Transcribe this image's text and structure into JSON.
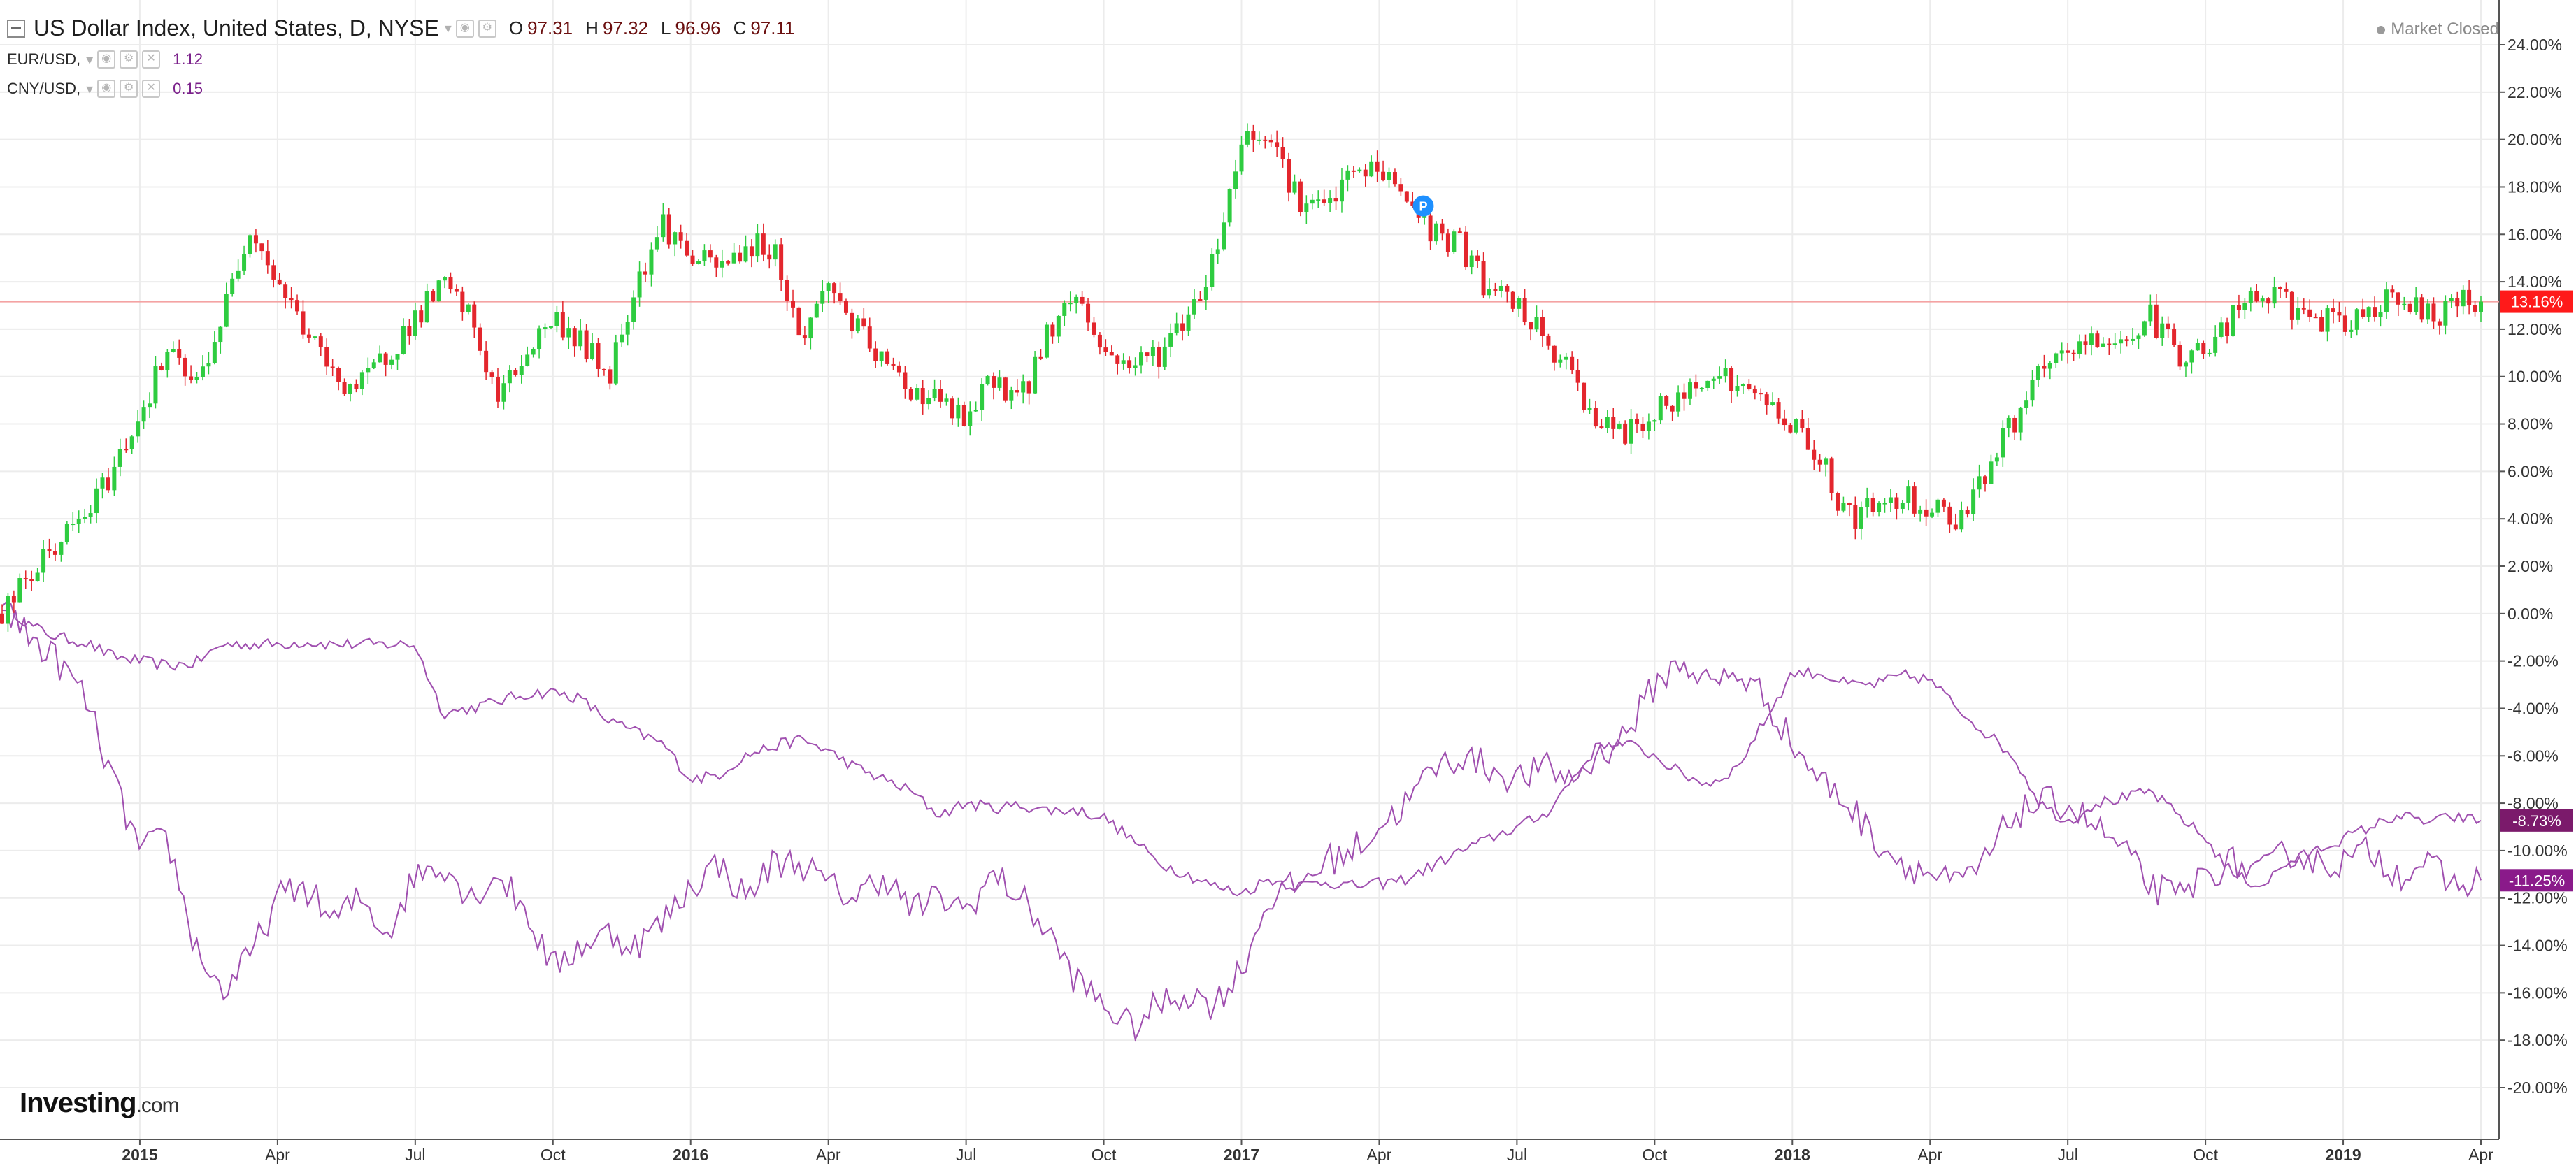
{
  "header": {
    "title": "US Dollar Index, United States, D, NYSE",
    "ohlc": [
      {
        "label": "O",
        "value": "97.31"
      },
      {
        "label": "H",
        "value": "97.32"
      },
      {
        "label": "L",
        "value": "96.96"
      },
      {
        "label": "C",
        "value": "97.11"
      }
    ],
    "market_status": "Market Closed"
  },
  "comparisons": [
    {
      "symbol": "EUR/USD,",
      "value": "1.12"
    },
    {
      "symbol": "CNY/USD,",
      "value": "0.15"
    }
  ],
  "logo": {
    "brand": "Investing",
    "domain": ".com"
  },
  "colors": {
    "up": "#26a69a",
    "up_candle": "#2ecc40",
    "down_candle": "#e3262d",
    "compare_line": "#a050b0",
    "grid": "#ececec",
    "price_line": "#f4a3a3",
    "label_main": "#ff1a1a",
    "label_compare_1": "#7b1a6b",
    "label_compare_2": "#8a1a8a",
    "marker": "#1e90ff"
  },
  "chart_data": {
    "type": "line",
    "title": "US Dollar Index, United States, D, NYSE",
    "yaxis": {
      "min": -20,
      "max": 24,
      "step": 2,
      "tick_labels": [
        "24.00%",
        "22.00%",
        "20.00%",
        "18.00%",
        "16.00%",
        "14.00%",
        "12.00%",
        "10.00%",
        "8.00%",
        "6.00%",
        "4.00%",
        "2.00%",
        "0.00%",
        "-2.00%",
        "-4.00%",
        "-6.00%",
        "-8.00%",
        "-10.00%",
        "-12.00%",
        "-14.00%",
        "-16.00%",
        "-18.00%",
        "-20.00%"
      ]
    },
    "xaxis": {
      "tick_labels": [
        "2015",
        "Apr",
        "Jul",
        "Oct",
        "2016",
        "Apr",
        "Jul",
        "Oct",
        "2017",
        "Apr",
        "Jul",
        "Oct",
        "2018",
        "Apr",
        "Jul",
        "Oct",
        "2019",
        "Apr"
      ],
      "tick_positions": [
        0.25,
        0.5,
        0.75,
        1.0,
        1.25,
        1.5,
        1.75,
        2.0,
        2.25,
        2.5,
        2.75,
        3.0,
        3.25,
        3.5,
        3.75,
        4.0,
        4.25,
        4.5
      ]
    },
    "current_price_line": 13.16,
    "last_value_labels": [
      {
        "series": "US Dollar Index",
        "text": "13.16%",
        "value": 13.16
      },
      {
        "series": "EUR/USD",
        "text": "-8.73%",
        "value": -8.73
      },
      {
        "series": "CNY/USD",
        "text": "-11.25%",
        "value": -11.25
      }
    ],
    "marker": {
      "text": "P",
      "t": 2.58,
      "y": 17.2
    },
    "series": [
      {
        "name": "US Dollar Index",
        "style": "candlestick",
        "x": [
          0.0,
          0.05,
          0.1,
          0.15,
          0.2,
          0.25,
          0.3,
          0.35,
          0.4,
          0.45,
          0.5,
          0.55,
          0.6,
          0.65,
          0.7,
          0.75,
          0.8,
          0.85,
          0.9,
          0.95,
          1.0,
          1.05,
          1.1,
          1.15,
          1.2,
          1.25,
          1.3,
          1.35,
          1.4,
          1.45,
          1.5,
          1.55,
          1.6,
          1.65,
          1.7,
          1.75,
          1.8,
          1.85,
          1.9,
          1.95,
          2.0,
          2.05,
          2.1,
          2.15,
          2.2,
          2.25,
          2.3,
          2.35,
          2.4,
          2.45,
          2.5,
          2.55,
          2.6,
          2.65,
          2.7,
          2.75,
          2.8,
          2.85,
          2.9,
          2.95,
          3.0,
          3.05,
          3.1,
          3.15,
          3.2,
          3.25,
          3.3,
          3.35,
          3.4,
          3.45,
          3.5,
          3.55,
          3.6,
          3.65,
          3.7,
          3.75,
          3.8,
          3.85,
          3.9,
          3.95,
          4.0,
          4.05,
          4.1,
          4.15,
          4.2,
          4.25,
          4.3,
          4.35,
          4.4,
          4.45,
          4.5
        ],
        "values": [
          0.0,
          1.5,
          3.0,
          4.0,
          6.0,
          8.5,
          11.0,
          9.5,
          12.5,
          16.5,
          14.0,
          12.0,
          10.0,
          9.5,
          11.0,
          12.5,
          13.8,
          12.5,
          9.0,
          11.0,
          12.5,
          11.5,
          10.0,
          14.0,
          16.5,
          15.0,
          14.5,
          15.5,
          15.5,
          11.5,
          14.0,
          12.0,
          10.5,
          9.5,
          9.0,
          8.0,
          10.0,
          9.0,
          12.0,
          13.5,
          11.0,
          10.5,
          11.0,
          12.5,
          15.0,
          20.0,
          20.5,
          17.5,
          17.0,
          18.5,
          18.8,
          17.5,
          16.0,
          15.5,
          13.5,
          13.0,
          11.5,
          10.0,
          8.0,
          7.5,
          8.5,
          9.0,
          10.5,
          9.5,
          9.0,
          8.0,
          6.5,
          4.0,
          4.5,
          5.0,
          4.5,
          4.0,
          6.0,
          8.0,
          10.0,
          11.0,
          11.5,
          11.5,
          12.5,
          11.0,
          11.0,
          12.5,
          13.5,
          13.0,
          12.5,
          12.0,
          13.0,
          13.5,
          12.5,
          13.0,
          13.16
        ]
      },
      {
        "name": "EUR/USD",
        "style": "line",
        "x": [
          0.0,
          0.05,
          0.1,
          0.15,
          0.2,
          0.25,
          0.3,
          0.35,
          0.4,
          0.45,
          0.5,
          0.55,
          0.6,
          0.65,
          0.7,
          0.75,
          0.8,
          0.85,
          0.9,
          0.95,
          1.0,
          1.05,
          1.1,
          1.15,
          1.2,
          1.25,
          1.3,
          1.35,
          1.4,
          1.45,
          1.5,
          1.55,
          1.6,
          1.65,
          1.7,
          1.75,
          1.8,
          1.85,
          1.9,
          1.95,
          2.0,
          2.05,
          2.1,
          2.15,
          2.2,
          2.25,
          2.3,
          2.35,
          2.4,
          2.45,
          2.5,
          2.55,
          2.6,
          2.65,
          2.7,
          2.75,
          2.8,
          2.85,
          2.9,
          2.95,
          3.0,
          3.05,
          3.1,
          3.15,
          3.2,
          3.25,
          3.3,
          3.35,
          3.4,
          3.45,
          3.5,
          3.55,
          3.6,
          3.65,
          3.7,
          3.75,
          3.8,
          3.85,
          3.9,
          3.95,
          4.0,
          4.05,
          4.1,
          4.15,
          4.2,
          4.25,
          4.3,
          4.35,
          4.4,
          4.45,
          4.5
        ],
        "values": [
          0.5,
          -0.5,
          -1.0,
          -1.2,
          -1.8,
          -2.0,
          -2.2,
          -2.1,
          -1.3,
          -1.3,
          -1.3,
          -1.2,
          -1.3,
          -1.3,
          -1.3,
          -1.3,
          -4.2,
          -4.0,
          -3.7,
          -3.4,
          -3.3,
          -3.6,
          -4.5,
          -5.0,
          -5.5,
          -7.0,
          -6.8,
          -6.0,
          -5.6,
          -5.3,
          -5.8,
          -6.5,
          -7.0,
          -7.5,
          -8.5,
          -8.0,
          -8.2,
          -8.1,
          -8.3,
          -8.3,
          -8.6,
          -9.5,
          -10.5,
          -11.0,
          -11.5,
          -11.8,
          -11.2,
          -11.5,
          -11.3,
          -11.5,
          -11.4,
          -11.2,
          -10.6,
          -10.0,
          -9.5,
          -9.0,
          -8.5,
          -7.0,
          -5.5,
          -5.5,
          -6.0,
          -6.8,
          -7.2,
          -6.5,
          -4.5,
          -2.5,
          -2.5,
          -3.0,
          -3.0,
          -2.6,
          -2.8,
          -4.0,
          -5.0,
          -6.0,
          -8.0,
          -8.8,
          -8.0,
          -7.8,
          -7.5,
          -8.5,
          -9.5,
          -11.0,
          -11.5,
          -10.5,
          -10.0,
          -9.5,
          -9.0,
          -8.5,
          -8.8,
          -8.6,
          -8.73
        ]
      },
      {
        "name": "CNY/USD",
        "style": "line",
        "x": [
          0.0,
          0.05,
          0.1,
          0.15,
          0.2,
          0.25,
          0.3,
          0.35,
          0.4,
          0.45,
          0.5,
          0.55,
          0.6,
          0.65,
          0.7,
          0.75,
          0.8,
          0.85,
          0.9,
          0.95,
          1.0,
          1.05,
          1.1,
          1.15,
          1.2,
          1.25,
          1.3,
          1.35,
          1.4,
          1.45,
          1.5,
          1.55,
          1.6,
          1.65,
          1.7,
          1.75,
          1.8,
          1.85,
          1.9,
          1.95,
          2.0,
          2.05,
          2.1,
          2.15,
          2.2,
          2.25,
          2.3,
          2.35,
          2.4,
          2.45,
          2.5,
          2.55,
          2.6,
          2.65,
          2.7,
          2.75,
          2.8,
          2.85,
          2.9,
          2.95,
          3.0,
          3.05,
          3.1,
          3.15,
          3.2,
          3.25,
          3.3,
          3.35,
          3.4,
          3.45,
          3.5,
          3.55,
          3.6,
          3.65,
          3.7,
          3.75,
          3.8,
          3.85,
          3.9,
          3.95,
          4.0,
          4.05,
          4.1,
          4.15,
          4.2,
          4.25,
          4.3,
          4.35,
          4.4,
          4.45,
          4.5
        ],
        "values": [
          0.3,
          -1.0,
          -2.0,
          -3.5,
          -7.0,
          -10.0,
          -9.5,
          -14.0,
          -16.0,
          -14.5,
          -12.0,
          -11.5,
          -13.0,
          -12.0,
          -13.5,
          -11.0,
          -10.5,
          -12.0,
          -11.0,
          -12.5,
          -15.0,
          -14.0,
          -13.5,
          -14.0,
          -13.0,
          -11.5,
          -10.5,
          -12.0,
          -10.5,
          -10.5,
          -11.5,
          -12.0,
          -11.0,
          -12.5,
          -12.0,
          -12.5,
          -11.0,
          -12.0,
          -13.5,
          -15.5,
          -16.5,
          -17.5,
          -16.5,
          -16.0,
          -16.5,
          -15.0,
          -12.0,
          -11.5,
          -10.5,
          -10.0,
          -9.0,
          -8.0,
          -6.5,
          -6.0,
          -6.5,
          -7.0,
          -6.5,
          -7.0,
          -6.0,
          -5.0,
          -3.0,
          -2.0,
          -3.0,
          -2.5,
          -3.5,
          -5.5,
          -7.0,
          -8.0,
          -9.5,
          -10.5,
          -11.0,
          -11.5,
          -10.5,
          -8.5,
          -8.0,
          -8.0,
          -9.0,
          -10.0,
          -11.5,
          -12.0,
          -11.0,
          -10.5,
          -11.0,
          -10.0,
          -10.5,
          -10.5,
          -10.0,
          -11.0,
          -10.5,
          -11.5,
          -11.25
        ]
      }
    ]
  }
}
